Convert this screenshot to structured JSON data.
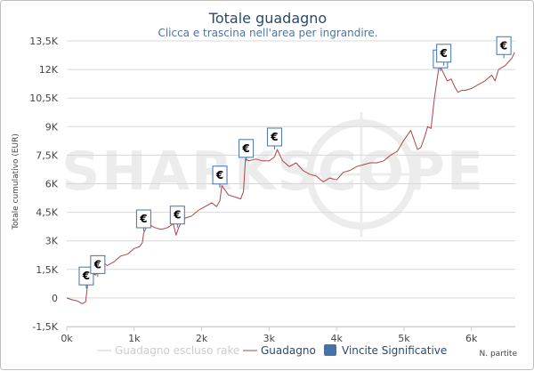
{
  "watermark": "SHARKSCOPE",
  "chart_data": {
    "type": "line",
    "title": "Totale guadagno",
    "subtitle": "Clicca e trascina nell'area per ingrandire.",
    "xlabel": "N. partite",
    "ylabel": "Totale cumulativo (EUR)",
    "xlim": [
      0,
      6650
    ],
    "ylim": [
      -1500,
      13500
    ],
    "x_ticks": [
      {
        "value": 0,
        "label": "0k"
      },
      {
        "value": 1000,
        "label": "1k"
      },
      {
        "value": 2000,
        "label": "2k"
      },
      {
        "value": 3000,
        "label": "3k"
      },
      {
        "value": 4000,
        "label": "4k"
      },
      {
        "value": 5000,
        "label": "5k"
      },
      {
        "value": 6000,
        "label": "6k"
      }
    ],
    "y_ticks": [
      {
        "value": -1500,
        "label": "-1,5K"
      },
      {
        "value": 0,
        "label": "0"
      },
      {
        "value": 1500,
        "label": "1,5K"
      },
      {
        "value": 3000,
        "label": "3K"
      },
      {
        "value": 4500,
        "label": "4,5K"
      },
      {
        "value": 6000,
        "label": "6K"
      },
      {
        "value": 7500,
        "label": "7,5K"
      },
      {
        "value": 9000,
        "label": "9K"
      },
      {
        "value": 10500,
        "label": "10,5K"
      },
      {
        "value": 12000,
        "label": "12K"
      },
      {
        "value": 13500,
        "label": "13,5K"
      }
    ],
    "grid": "horizontal",
    "legend_position": "bottom",
    "series": [
      {
        "name": "Guadagno escluso rake",
        "color": "#cccccc",
        "x": [],
        "y": []
      },
      {
        "name": "Guadagno",
        "color": "#aa4643",
        "x": [
          0,
          80,
          150,
          230,
          280,
          300,
          320,
          380,
          430,
          470,
          520,
          600,
          700,
          800,
          900,
          1000,
          1080,
          1120,
          1140,
          1180,
          1250,
          1300,
          1400,
          1500,
          1580,
          1620,
          1660,
          1700,
          1760,
          1850,
          1950,
          2050,
          2150,
          2220,
          2270,
          2300,
          2400,
          2500,
          2580,
          2620,
          2650,
          2700,
          2800,
          2900,
          3000,
          3080,
          3120,
          3200,
          3300,
          3400,
          3500,
          3600,
          3700,
          3800,
          3900,
          4000,
          4100,
          4200,
          4300,
          4400,
          4500,
          4600,
          4700,
          4800,
          4900,
          5000,
          5100,
          5200,
          5250,
          5300,
          5350,
          5400,
          5450,
          5500,
          5520,
          5560,
          5600,
          5640,
          5700,
          5750,
          5800,
          5850,
          5900,
          6000,
          6100,
          6200,
          6300,
          6350,
          6400,
          6450,
          6500,
          6550,
          6600,
          6640
        ],
        "y": [
          0,
          -100,
          -150,
          -300,
          -200,
          400,
          1100,
          1300,
          1200,
          1500,
          1900,
          1700,
          1900,
          2200,
          2300,
          2600,
          2700,
          2900,
          3400,
          3700,
          3800,
          3700,
          3600,
          3700,
          3900,
          3300,
          3700,
          4000,
          4200,
          4300,
          4600,
          4800,
          5000,
          4800,
          5100,
          5900,
          5400,
          5300,
          5200,
          5600,
          7300,
          7200,
          7300,
          7200,
          7200,
          7400,
          7800,
          7200,
          6900,
          7100,
          6700,
          6500,
          6400,
          6100,
          6300,
          6200,
          6600,
          6700,
          6900,
          7000,
          7100,
          7100,
          7200,
          7500,
          7700,
          8300,
          8800,
          7800,
          7900,
          8400,
          9000,
          8900,
          10500,
          11700,
          12200,
          12000,
          11700,
          11400,
          11500,
          11100,
          10800,
          10900,
          10900,
          11000,
          11200,
          11400,
          11700,
          11400,
          12000,
          12100,
          12200,
          12400,
          12600,
          12900
        ]
      },
      {
        "name": "Vincite Significative",
        "color": "#4572a7",
        "type": "flags",
        "flag_text": "€",
        "x": [
          290,
          460,
          1140,
          1640,
          2270,
          2660,
          3080,
          5540,
          5590,
          6480
        ],
        "y": [
          500,
          1100,
          3500,
          3700,
          5800,
          7200,
          7800,
          11900,
          12200,
          12600
        ]
      }
    ]
  }
}
